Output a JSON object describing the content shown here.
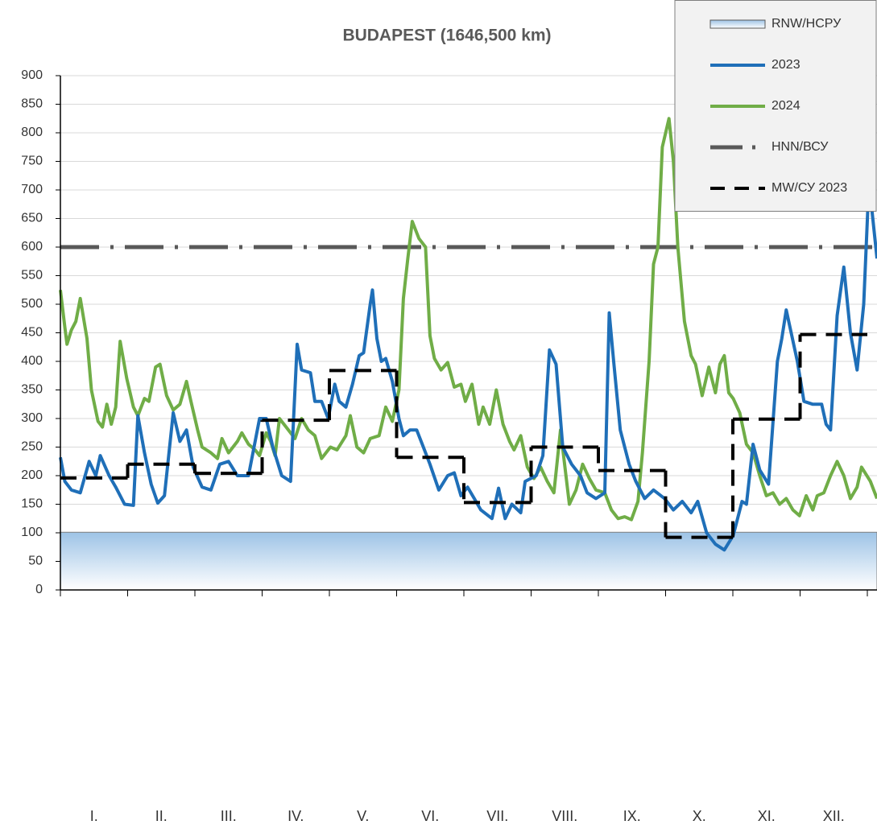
{
  "chart_data": {
    "type": "line",
    "title": "BUDAPEST  (1646,500 km)",
    "categories": [
      "I.",
      "II.",
      "III.",
      "IV.",
      "V.",
      "VI.",
      "VII.",
      "VIII.",
      "IX.",
      "X.",
      "XI.",
      "XII."
    ],
    "xlim": [
      0,
      369
    ],
    "ylim": [
      0,
      900
    ],
    "yticks": [
      0,
      50,
      100,
      150,
      200,
      250,
      300,
      350,
      400,
      450,
      500,
      550,
      600,
      650,
      700,
      750,
      800,
      850,
      900
    ],
    "grid": true,
    "legend": "top-right",
    "bands": [
      {
        "name": "RNW/НСРУ",
        "color": "#9dc3e6",
        "value": 101
      }
    ],
    "reference_lines": [
      {
        "name": "HNN/ВСУ",
        "color": "#595959",
        "value": 600
      }
    ],
    "monthly_mean": {
      "name": "MW/СУ 2023",
      "color": "#000000",
      "values": [
        196,
        220,
        204,
        297,
        384,
        232,
        153,
        250,
        209,
        92,
        299,
        447
      ]
    },
    "series": [
      {
        "name": "2023",
        "color": "#1f6fb8",
        "x": [
          0,
          2,
          5,
          9,
          13,
          16,
          18,
          22,
          25,
          29,
          33,
          35,
          38,
          41,
          44,
          47,
          51,
          54,
          57,
          60,
          64,
          68,
          72,
          76,
          80,
          85,
          90,
          93,
          96,
          100,
          104,
          107,
          109,
          113,
          115,
          118,
          121,
          124,
          126,
          129,
          132,
          135,
          137,
          140,
          141,
          143,
          145,
          147,
          150,
          153,
          155,
          158,
          161,
          164,
          167,
          171,
          175,
          178,
          181,
          184,
          187,
          190,
          195,
          198,
          201,
          204,
          208,
          210,
          215,
          218,
          221,
          224,
          227,
          231,
          235,
          238,
          242,
          246,
          248,
          250,
          253,
          257,
          260,
          264,
          268,
          273,
          277,
          281,
          285,
          288,
          292,
          296,
          300,
          304,
          308,
          310,
          313,
          316,
          320,
          324,
          326,
          328,
          333,
          336,
          340,
          344,
          346,
          348,
          351,
          354,
          357,
          360,
          363,
          365,
          366,
          369
        ],
        "values": [
          232,
          190,
          175,
          170,
          225,
          200,
          235,
          200,
          180,
          150,
          148,
          305,
          240,
          185,
          152,
          165,
          310,
          260,
          280,
          215,
          180,
          175,
          220,
          225,
          200,
          200,
          300,
          300,
          250,
          200,
          190,
          430,
          385,
          380,
          330,
          330,
          300,
          360,
          330,
          320,
          360,
          410,
          415,
          500,
          525,
          440,
          400,
          405,
          365,
          300,
          270,
          280,
          280,
          250,
          220,
          175,
          200,
          205,
          165,
          180,
          160,
          140,
          125,
          178,
          125,
          150,
          135,
          190,
          200,
          235,
          420,
          395,
          250,
          220,
          200,
          170,
          160,
          170,
          485,
          400,
          280,
          220,
          190,
          160,
          175,
          160,
          140,
          155,
          135,
          155,
          100,
          80,
          70,
          95,
          155,
          150,
          255,
          210,
          185,
          400,
          440,
          490,
          400,
          330,
          325,
          325,
          290,
          280,
          480,
          565,
          450,
          385,
          500,
          680,
          690,
          580
        ]
      },
      {
        "name": "2024",
        "color": "#70ad47",
        "x": [
          0,
          2,
          3,
          5,
          7,
          9,
          12,
          14,
          17,
          19,
          21,
          23,
          25,
          27,
          30,
          33,
          35,
          38,
          40,
          43,
          45,
          48,
          51,
          54,
          57,
          59,
          62,
          64,
          68,
          71,
          73,
          76,
          80,
          82,
          85,
          88,
          90,
          93,
          95,
          97,
          99,
          102,
          106,
          109,
          112,
          115,
          118,
          122,
          125,
          129,
          131,
          134,
          137,
          140,
          144,
          147,
          150,
          153,
          155,
          157,
          159,
          162,
          165,
          167,
          169,
          172,
          175,
          178,
          181,
          183,
          186,
          189,
          191,
          194,
          197,
          200,
          203,
          205,
          208,
          211,
          214,
          217,
          220,
          223,
          226,
          228,
          230,
          233,
          236,
          239,
          242,
          246,
          249,
          252,
          255,
          258,
          261,
          263,
          266,
          268,
          270,
          272,
          275,
          277,
          279,
          282,
          285,
          287,
          290,
          293,
          296,
          298,
          300,
          302,
          304,
          307,
          310,
          313,
          316,
          319,
          322,
          325,
          328,
          331,
          334,
          337,
          340,
          342,
          345,
          348,
          351,
          354,
          357,
          360,
          362,
          366,
          369
        ],
        "values": [
          525,
          460,
          430,
          455,
          470,
          510,
          440,
          350,
          295,
          285,
          325,
          290,
          320,
          435,
          370,
          320,
          305,
          335,
          330,
          390,
          395,
          340,
          315,
          325,
          365,
          330,
          280,
          250,
          240,
          230,
          265,
          240,
          260,
          275,
          255,
          245,
          235,
          275,
          260,
          235,
          300,
          285,
          265,
          300,
          280,
          270,
          230,
          250,
          245,
          270,
          305,
          250,
          240,
          265,
          270,
          320,
          295,
          350,
          510,
          580,
          645,
          615,
          600,
          445,
          405,
          385,
          398,
          355,
          360,
          330,
          360,
          290,
          320,
          290,
          350,
          290,
          260,
          245,
          270,
          215,
          195,
          215,
          190,
          170,
          280,
          215,
          150,
          175,
          220,
          195,
          175,
          170,
          140,
          125,
          128,
          123,
          155,
          240,
          400,
          570,
          600,
          775,
          825,
          750,
          600,
          470,
          410,
          395,
          340,
          390,
          345,
          395,
          410,
          345,
          335,
          310,
          255,
          240,
          200,
          165,
          170,
          150,
          160,
          140,
          130,
          165,
          140,
          165,
          170,
          200,
          225,
          200,
          160,
          180,
          215,
          190,
          160
        ]
      }
    ]
  }
}
